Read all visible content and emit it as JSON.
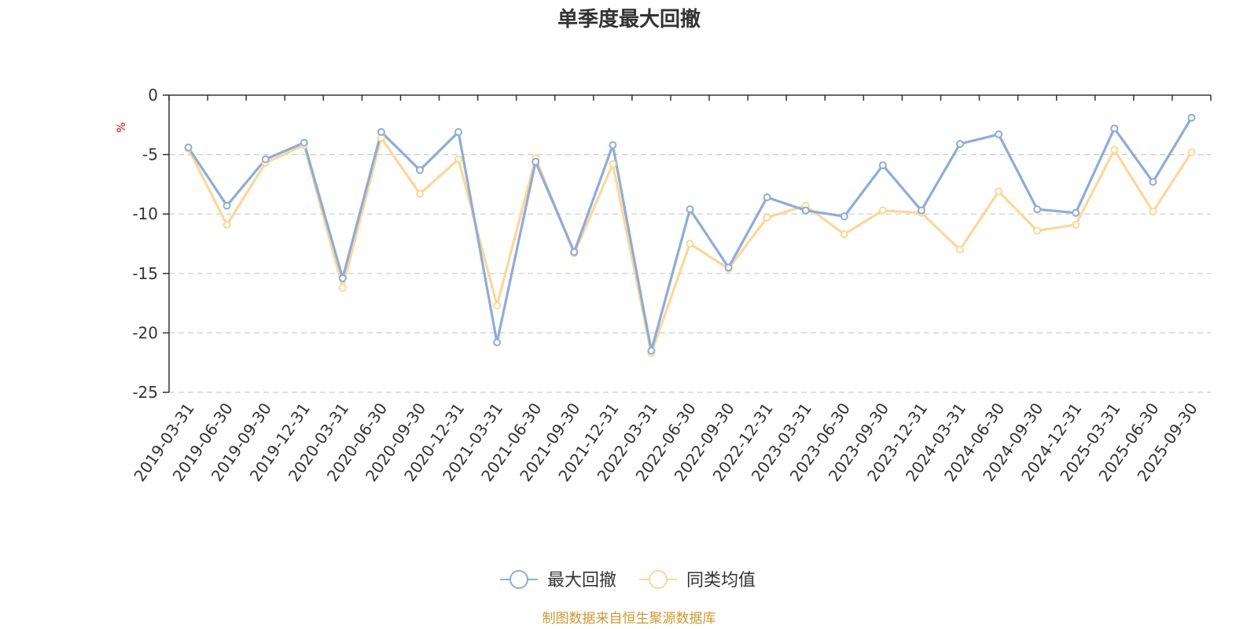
{
  "chart_data": {
    "type": "line",
    "title": "单季度最大回撤",
    "ylabel": "%",
    "ylim": [
      -25,
      0
    ],
    "yticks": [
      0,
      -5,
      -10,
      -15,
      -20,
      -25
    ],
    "grid": true,
    "legend_position": "bottom-center",
    "categories": [
      "2019-03-31",
      "2019-06-30",
      "2019-09-30",
      "2019-12-31",
      "2020-03-31",
      "2020-06-30",
      "2020-09-30",
      "2020-12-31",
      "2021-03-31",
      "2021-06-30",
      "2021-09-30",
      "2021-12-31",
      "2022-03-31",
      "2022-06-30",
      "2022-09-30",
      "2022-12-31",
      "2023-03-31",
      "2023-06-30",
      "2023-09-30",
      "2023-12-31",
      "2024-03-31",
      "2024-06-30",
      "2024-09-30",
      "2024-12-31",
      "2025-03-31",
      "2025-06-30",
      "2025-09-30"
    ],
    "series": [
      {
        "name": "最大回撤",
        "color": "#8eacd8",
        "values": [
          -4.4,
          -9.3,
          -5.4,
          -4.0,
          -15.4,
          -3.1,
          -6.3,
          -3.1,
          -20.8,
          -5.6,
          -13.2,
          -4.2,
          -21.5,
          -9.6,
          -14.5,
          -8.6,
          -9.7,
          -10.2,
          -5.9,
          -9.7,
          -4.1,
          -3.3,
          -9.6,
          -9.9,
          -2.8,
          -7.3,
          -1.9
        ]
      },
      {
        "name": "同类均值",
        "color": "#fcd79a",
        "values": [
          -4.5,
          -10.9,
          -5.7,
          -4.2,
          -16.2,
          -3.6,
          -8.3,
          -5.4,
          -17.7,
          -5.3,
          -13.3,
          -5.8,
          -21.7,
          -12.5,
          -14.6,
          -10.3,
          -9.3,
          -11.7,
          -9.7,
          -9.9,
          -13.0,
          -8.1,
          -11.4,
          -10.9,
          -4.6,
          -9.8,
          -4.8
        ]
      }
    ]
  },
  "source": "制图数据来自恒生聚源数据库",
  "colors": {
    "axis": "#333333",
    "grid": "#cccccc",
    "unit": "#ff0000",
    "source": "#cc9933"
  }
}
